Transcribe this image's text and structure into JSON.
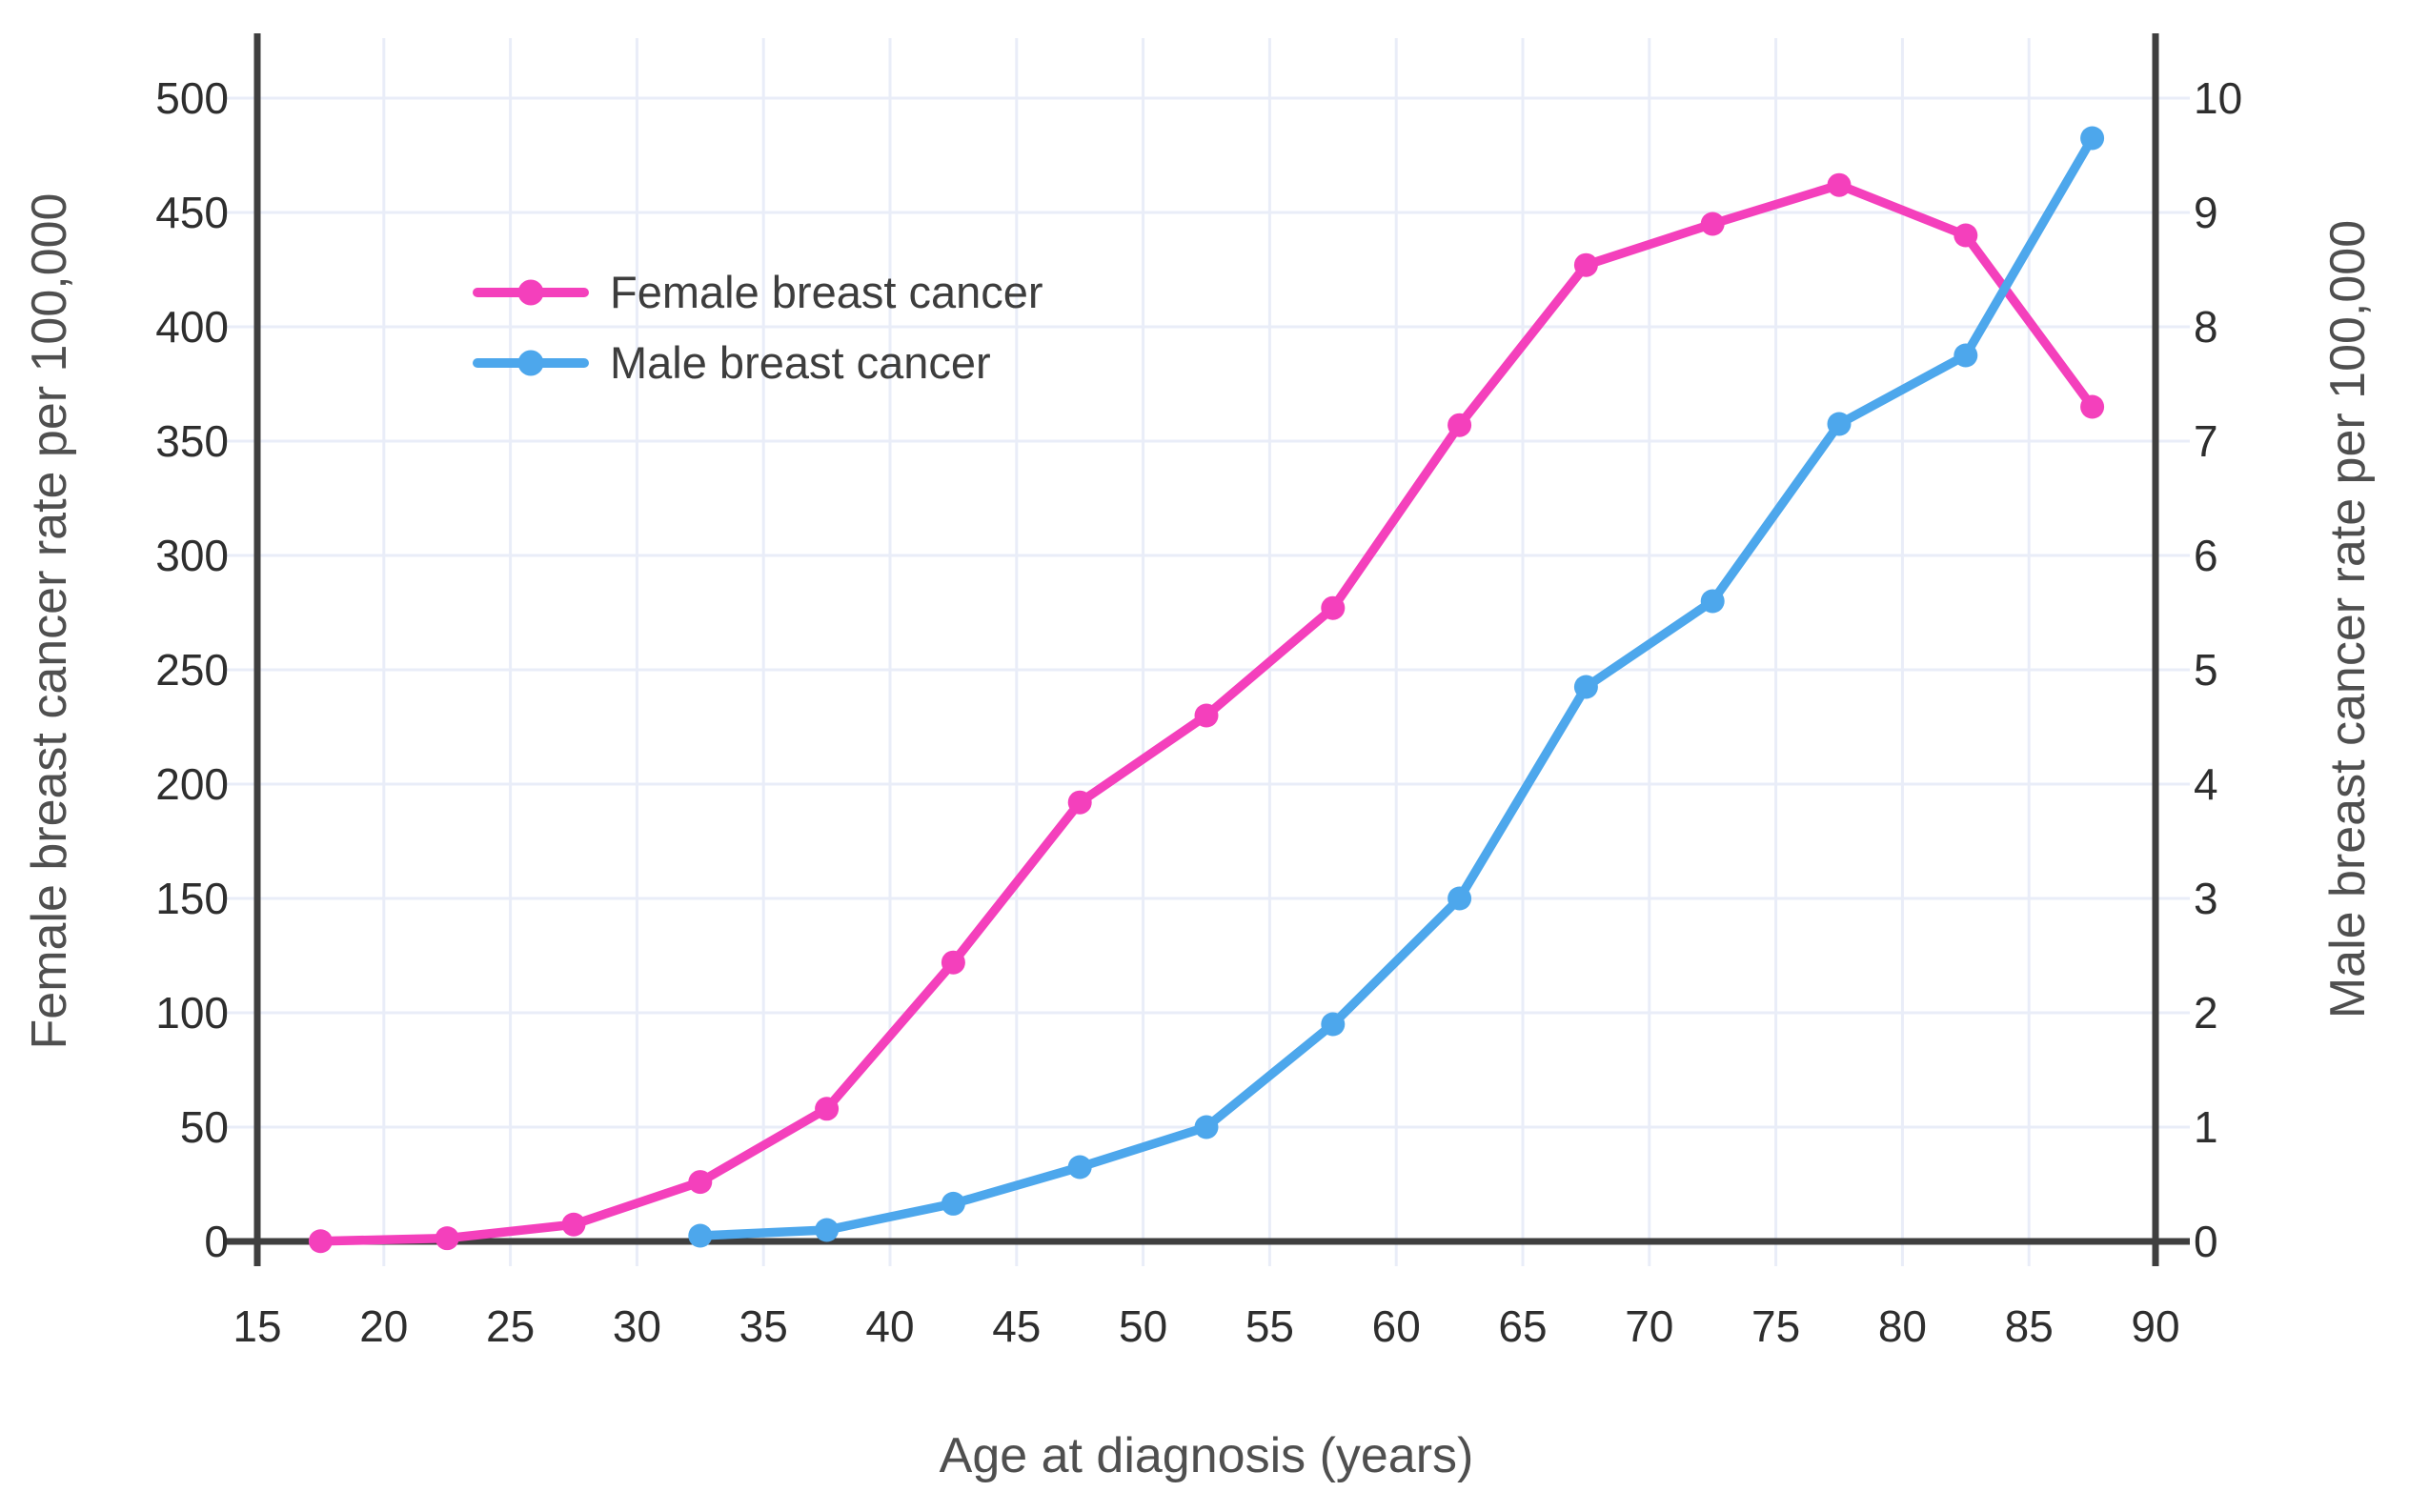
{
  "chart_data": {
    "type": "line",
    "title": "",
    "xlabel": "Age at diagnosis (years)",
    "ylabel_left": "Female breast cancer rate per 100,000",
    "ylabel_right": "Male breast cancer rate per 100,000",
    "xlim": [
      15,
      90
    ],
    "ylim_left": [
      0,
      500
    ],
    "ylim_right": [
      0,
      10
    ],
    "x_ticks": [
      15,
      20,
      25,
      30,
      35,
      40,
      45,
      50,
      55,
      60,
      65,
      70,
      75,
      80,
      85,
      90
    ],
    "y_ticks_left": [
      0,
      50,
      100,
      150,
      200,
      250,
      300,
      350,
      400,
      450,
      500
    ],
    "y_ticks_right": [
      0,
      1,
      2,
      3,
      4,
      5,
      6,
      7,
      8,
      9,
      10
    ],
    "grid": true,
    "legend_position": "upper-left-inside",
    "series": [
      {
        "name": "Female breast cancer",
        "axis": "left",
        "color": "#f440bc",
        "x": [
          17.5,
          22.5,
          27.5,
          32.5,
          37.5,
          42.5,
          47.5,
          52.5,
          57.5,
          62.5,
          67.5,
          72.5,
          77.5,
          82.5,
          87.5
        ],
        "values": [
          0.1,
          1.4,
          7.4,
          26,
          58,
          122,
          192,
          230,
          277,
          357,
          427,
          445,
          462,
          440,
          365
        ]
      },
      {
        "name": "Male breast cancer",
        "axis": "right",
        "color": "#4da7ec",
        "x": [
          32.5,
          37.5,
          42.5,
          47.5,
          52.5,
          57.5,
          62.5,
          67.5,
          72.5,
          77.5,
          82.5,
          87.5
        ],
        "values": [
          0.05,
          0.1,
          0.33,
          0.65,
          1.0,
          1.9,
          3.0,
          4.85,
          5.6,
          7.15,
          7.75,
          9.65
        ]
      }
    ]
  },
  "colors": {
    "background": "#ffffff",
    "axis_line": "#3f3f3f",
    "gridline": "#e9edf8",
    "tick_label": "#2e2e2e",
    "axis_title": "#4f4f4f",
    "legend_text": "#3d3d3d"
  }
}
